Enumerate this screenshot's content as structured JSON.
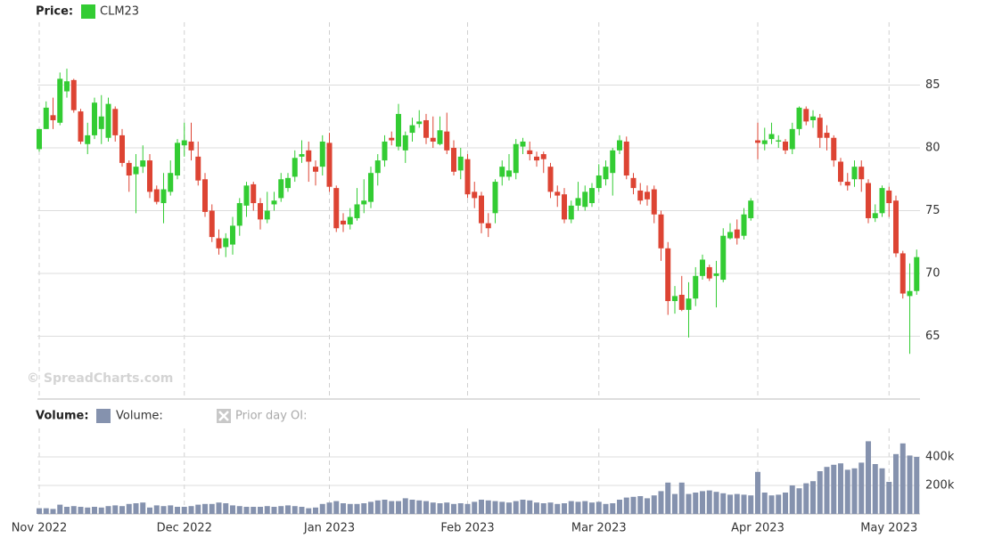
{
  "watermark": "© SpreadCharts.com",
  "chart_data": [
    {
      "type": "candlestick",
      "legend_title": "Price:",
      "series": [
        {
          "name": "CLM23",
          "color": "#33cc33",
          "down_color": "#dd4433",
          "open": [
            79.9,
            81.5,
            82.6,
            82,
            84.5,
            85.4,
            82.9,
            80.3,
            81,
            81.5,
            80.8,
            83.1,
            81,
            78.8,
            77.9,
            78.5,
            79,
            76.7,
            75.6,
            76.5,
            77.8,
            80.2,
            80.5,
            79.3,
            77.5,
            75,
            72.8,
            72.1,
            72.3,
            73.8,
            75.4,
            77.1,
            75.6,
            74.3,
            75.5,
            76,
            76.8,
            77.7,
            79.3,
            79.8,
            78.5,
            78.5,
            80.4,
            76.8,
            74.2,
            73.9,
            74.4,
            75.5,
            75.7,
            78,
            79,
            80.8,
            80.1,
            79.8,
            81.2,
            81.9,
            82.2,
            80.8,
            80.3,
            81.3,
            80,
            78.2,
            79.1,
            76.5,
            76.2,
            74,
            74.8,
            77.7,
            77.7,
            78,
            80.1,
            79.8,
            79.3,
            79.5,
            78.5,
            76.5,
            76.3,
            74.3,
            75.4,
            75.3,
            75.6,
            76.8,
            77.5,
            78,
            79.8,
            80.5,
            77.6,
            76.6,
            76.5,
            76.7,
            74.7,
            72,
            67.8,
            68.3,
            67.1,
            68,
            69.8,
            70.5,
            69.8,
            69.5,
            72.8,
            73.5,
            73,
            74.4,
            80.6,
            80.3,
            80.7,
            80.5,
            80.5,
            79.9,
            81.5,
            83.1,
            82.2,
            82.4,
            81.2,
            80.8,
            78.9,
            77.3,
            77.5,
            78.5,
            77.2,
            74.4,
            74.8,
            76.6,
            75.8,
            71.6,
            68.2,
            68.6
          ],
          "high": [
            81.5,
            83.7,
            84,
            86,
            86.3,
            85.5,
            83.1,
            82,
            84,
            84.2,
            84,
            83.3,
            81.5,
            79,
            79.5,
            80.2,
            79.5,
            77,
            78,
            79,
            80.7,
            82,
            82,
            80.5,
            78,
            75.5,
            73.5,
            73.2,
            74.5,
            76,
            77.3,
            77.3,
            76,
            76.5,
            76.5,
            78,
            78,
            79.8,
            80.6,
            80.5,
            79,
            81,
            81.2,
            77,
            74.8,
            75.2,
            76.8,
            77.5,
            78.5,
            79.5,
            81,
            81.3,
            83.5,
            81.3,
            82.4,
            83,
            82.7,
            82.5,
            82.5,
            82.8,
            80.6,
            80,
            79.5,
            77.3,
            76.5,
            74.8,
            77.5,
            79,
            79.5,
            80.7,
            80.8,
            80.5,
            79.7,
            79.7,
            78.8,
            77,
            76.8,
            75.8,
            77.3,
            77,
            77.2,
            78.7,
            79,
            80,
            81,
            80.9,
            78,
            77.2,
            77,
            77,
            75,
            72.5,
            69,
            69.8,
            69.3,
            70.5,
            71.5,
            70.7,
            71,
            73.6,
            74,
            74.3,
            75.2,
            76,
            82,
            81.6,
            82,
            81,
            80.7,
            82,
            83.3,
            83.3,
            83,
            82.7,
            81.8,
            81,
            79.2,
            78,
            79,
            79,
            77.5,
            75.5,
            77,
            76.9,
            76.2,
            71.8,
            70.8,
            71.9
          ],
          "low": [
            79.7,
            81.5,
            81.5,
            81.8,
            84,
            82.8,
            80.3,
            79.5,
            80.7,
            80.3,
            80.5,
            80.5,
            78.5,
            76.5,
            74.8,
            78,
            76,
            75.5,
            74,
            76.2,
            77.5,
            79.3,
            79,
            77,
            74.5,
            72.5,
            71.5,
            71.3,
            71.5,
            73,
            74.5,
            75,
            73.5,
            74,
            75,
            75.7,
            76.5,
            77.3,
            78.8,
            77.3,
            77,
            77.8,
            76.5,
            73.3,
            73.3,
            73.5,
            74.2,
            74.8,
            75.2,
            77,
            78.5,
            80.2,
            79.8,
            78.8,
            80.5,
            81.6,
            80.3,
            80,
            80.2,
            79.5,
            77.8,
            77.5,
            76,
            75.2,
            73.2,
            72.9,
            74,
            77,
            77.4,
            77.5,
            79.5,
            79,
            78.5,
            78,
            76,
            75.3,
            74,
            74,
            75,
            75,
            75.3,
            76.5,
            77,
            76.2,
            79.5,
            77.5,
            76.3,
            75.5,
            75.4,
            74,
            71,
            66.7,
            66.8,
            67,
            64.9,
            67.4,
            69.5,
            69.4,
            67.3,
            69.3,
            72.7,
            72.3,
            72.7,
            74.2,
            79.1,
            79.8,
            80.3,
            80,
            79.5,
            79.5,
            81,
            81.8,
            81.6,
            80,
            79.8,
            78.5,
            77,
            76.6,
            76.9,
            76.5,
            74,
            74.1,
            74.5,
            74.5,
            71.3,
            68,
            63.6,
            68.3
          ],
          "close": [
            81.5,
            83.2,
            82.2,
            85.5,
            85.3,
            83,
            80.5,
            81,
            83.6,
            82.5,
            83.5,
            81,
            78.8,
            77.8,
            78.5,
            79,
            76.5,
            75.7,
            76.7,
            78,
            80.4,
            80.6,
            79.8,
            77.4,
            74.9,
            72.9,
            72,
            72.8,
            73.8,
            75.6,
            77,
            75.6,
            74.3,
            75,
            75.8,
            77.5,
            77.6,
            79.2,
            79.5,
            78.9,
            78.1,
            80.5,
            76.9,
            73.6,
            73.9,
            74.5,
            75.5,
            75.8,
            78,
            79,
            80.5,
            80.6,
            82.7,
            81,
            81.8,
            82.1,
            80.8,
            80.5,
            81.4,
            79.8,
            78.1,
            79.3,
            76.3,
            76,
            74,
            73.6,
            77.3,
            78.5,
            78.2,
            80.3,
            80.5,
            79.5,
            79,
            79.1,
            76.5,
            76.2,
            74.3,
            75.4,
            76,
            76.5,
            76.8,
            77.8,
            78.5,
            79.8,
            80.6,
            77.8,
            76.8,
            75.8,
            75.9,
            74.7,
            72,
            67.8,
            68.2,
            67.1,
            68,
            69.8,
            71.1,
            69.6,
            70,
            73,
            73.3,
            72.8,
            74.7,
            75.8,
            80.4,
            80.6,
            81.1,
            80.6,
            79.8,
            81.5,
            83.2,
            82.1,
            82.5,
            80.8,
            80.8,
            79,
            77.3,
            77,
            78.5,
            77.5,
            74.4,
            74.8,
            76.8,
            75.6,
            71.6,
            68.4,
            68.6,
            71.3
          ]
        }
      ],
      "ylim": [
        60,
        90
      ],
      "yticks": [
        65,
        70,
        75,
        80,
        85
      ],
      "grid": true
    },
    {
      "type": "bar",
      "legend_title": "Volume:",
      "inactive_series": [
        "Prior day OI:"
      ],
      "categories": [
        "Nov 2022",
        null,
        null,
        null,
        null,
        null,
        null,
        null,
        null,
        null,
        null,
        null,
        null,
        null,
        null,
        null,
        null,
        null,
        null,
        null,
        null,
        "Dec 2022",
        null,
        null,
        null,
        null,
        null,
        null,
        null,
        null,
        null,
        null,
        null,
        null,
        null,
        null,
        null,
        null,
        null,
        null,
        null,
        null,
        "Jan 2023",
        null,
        null,
        null,
        null,
        null,
        null,
        null,
        null,
        null,
        null,
        null,
        null,
        null,
        null,
        null,
        null,
        null,
        null,
        null,
        "Feb 2023",
        null,
        null,
        null,
        null,
        null,
        null,
        null,
        null,
        null,
        null,
        null,
        null,
        null,
        null,
        null,
        null,
        null,
        null,
        "Mar 2023",
        null,
        null,
        null,
        null,
        null,
        null,
        null,
        null,
        null,
        null,
        null,
        null,
        null,
        null,
        null,
        null,
        null,
        null,
        null,
        null,
        null,
        null,
        "Apr 2023",
        null,
        null,
        null,
        null,
        null,
        null,
        null,
        null,
        null,
        null,
        null,
        null,
        null,
        null,
        null,
        null,
        null,
        null,
        "May 2023",
        null,
        null,
        null,
        null
      ],
      "series": [
        {
          "name": "Volume:",
          "color": "#8592ae",
          "values": [
            40000,
            40000,
            35000,
            65000,
            50000,
            55000,
            50000,
            45000,
            50000,
            45000,
            55000,
            60000,
            55000,
            70000,
            75000,
            80000,
            45000,
            60000,
            55000,
            60000,
            50000,
            50000,
            55000,
            65000,
            70000,
            70000,
            80000,
            75000,
            60000,
            55000,
            50000,
            50000,
            50000,
            55000,
            50000,
            55000,
            60000,
            55000,
            50000,
            40000,
            45000,
            70000,
            80000,
            90000,
            75000,
            70000,
            70000,
            75000,
            85000,
            95000,
            100000,
            90000,
            90000,
            110000,
            100000,
            95000,
            90000,
            80000,
            75000,
            80000,
            70000,
            75000,
            70000,
            85000,
            100000,
            95000,
            90000,
            85000,
            80000,
            90000,
            100000,
            95000,
            80000,
            75000,
            80000,
            70000,
            75000,
            90000,
            85000,
            90000,
            80000,
            85000,
            70000,
            75000,
            100000,
            115000,
            120000,
            125000,
            110000,
            130000,
            160000,
            220000,
            140000,
            220000,
            140000,
            150000,
            160000,
            165000,
            155000,
            145000,
            135000,
            140000,
            135000,
            130000,
            295000,
            150000,
            130000,
            135000,
            150000,
            200000,
            180000,
            215000,
            230000,
            300000,
            330000,
            345000,
            355000,
            310000,
            320000,
            360000,
            510000,
            350000,
            320000,
            225000,
            420000,
            495000,
            410000,
            400000
          ]
        }
      ],
      "ylim": [
        0,
        600000
      ],
      "yticks": [
        {
          "value": 200000,
          "label": "200k"
        },
        {
          "value": 400000,
          "label": "400k"
        }
      ],
      "grid": true
    }
  ]
}
